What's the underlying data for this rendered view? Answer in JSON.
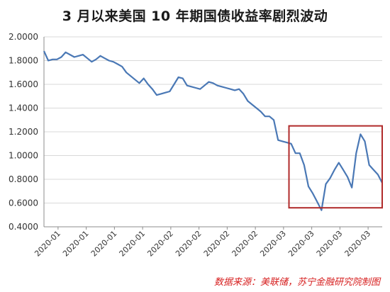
{
  "chart_data": {
    "type": "line",
    "title": "3 月以来美国 10 年期国债收益率剧烈波动",
    "xlabel": "",
    "ylabel": "",
    "ylim": [
      0.4,
      2.0
    ],
    "y_ticks": [
      "0.4000",
      "0.6000",
      "0.8000",
      "1.0000",
      "1.2000",
      "1.4000",
      "1.6000",
      "1.8000",
      "2.0000"
    ],
    "x_tick_labels": [
      "2020-01",
      "2020-01",
      "2020-01",
      "2020-01",
      "2020-02",
      "2020-02",
      "2020-02",
      "2020-02",
      "2020-03",
      "2020-03",
      "2020-03",
      "2020-03"
    ],
    "grid": "horizontal",
    "legend": "none",
    "series": [
      {
        "color": "#4a78b5",
        "values": [
          1.88,
          1.8,
          1.81,
          1.81,
          1.83,
          1.87,
          1.85,
          1.83,
          1.84,
          1.85,
          1.82,
          1.79,
          1.81,
          1.84,
          1.82,
          1.8,
          1.79,
          1.77,
          1.75,
          1.7,
          1.67,
          1.64,
          1.61,
          1.65,
          1.6,
          1.56,
          1.51,
          1.52,
          1.53,
          1.54,
          1.6,
          1.66,
          1.65,
          1.59,
          1.58,
          1.57,
          1.56,
          1.59,
          1.62,
          1.61,
          1.59,
          1.58,
          1.57,
          1.56,
          1.55,
          1.56,
          1.52,
          1.46,
          1.43,
          1.4,
          1.37,
          1.33,
          1.33,
          1.3,
          1.13,
          1.12,
          1.11,
          1.1,
          1.02,
          1.02,
          0.92,
          0.74,
          0.68,
          0.61,
          0.54,
          0.76,
          0.81,
          0.88,
          0.94,
          0.88,
          0.82,
          0.73,
          1.02,
          1.18,
          1.12,
          0.92,
          0.88,
          0.84,
          0.77
        ]
      }
    ],
    "highlight_color": "#b02a2a",
    "highlight_box": {
      "x_start_index": 56.5,
      "x_end_index": 78,
      "y_top": 1.25,
      "y_bottom": 0.56
    },
    "source": "数据来源：美联储，苏宁金融研究院制图"
  }
}
